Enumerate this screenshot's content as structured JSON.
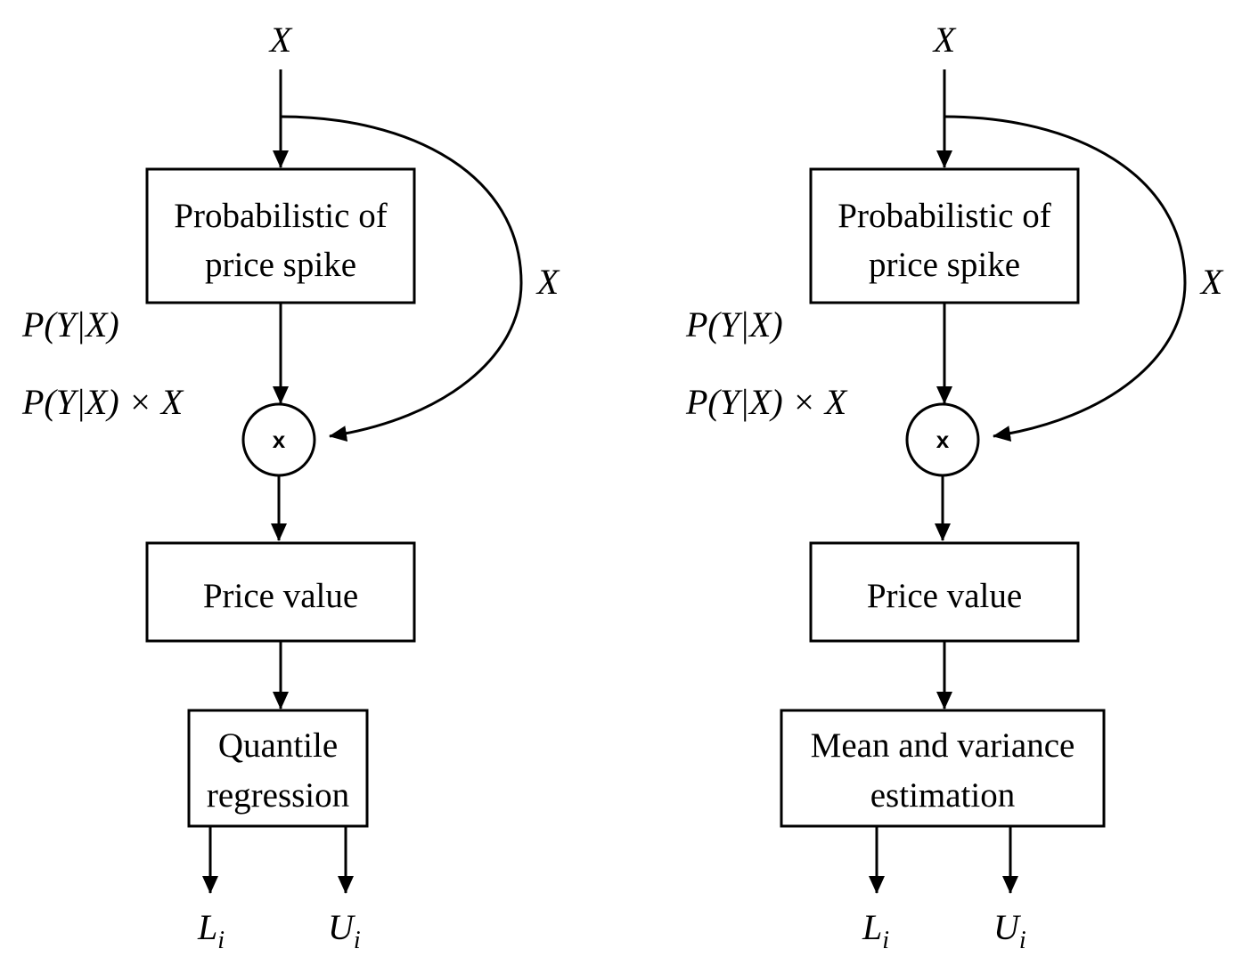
{
  "colors": {
    "spike_box": "#3ea4f8",
    "price_box": "#9c5a7a",
    "estimator_box": "#80d854",
    "stroke": "#000000"
  },
  "panels": [
    {
      "input_label": "X",
      "side_label": "X",
      "spike_box": {
        "line1": "Probabilistic of",
        "line2": "price spike"
      },
      "prob_label": "P(Y|X)",
      "product_label": "P(Y|X) × X",
      "multiply_symbol": "x",
      "price_box": {
        "label": "Price value"
      },
      "estimator_box": {
        "line1": "Quantile",
        "line2": "regression"
      },
      "outputs": [
        {
          "main": "L",
          "sub": "i"
        },
        {
          "main": "U",
          "sub": "i"
        }
      ]
    },
    {
      "input_label": "X",
      "side_label": "X",
      "spike_box": {
        "line1": "Probabilistic of",
        "line2": "price spike"
      },
      "prob_label": "P(Y|X)",
      "product_label": "P(Y|X) × X",
      "multiply_symbol": "x",
      "price_box": {
        "label": "Price value"
      },
      "estimator_box": {
        "line1": "Mean and variance",
        "line2": "estimation"
      },
      "outputs": [
        {
          "main": "L",
          "sub": "i"
        },
        {
          "main": "U",
          "sub": "i"
        }
      ]
    }
  ]
}
